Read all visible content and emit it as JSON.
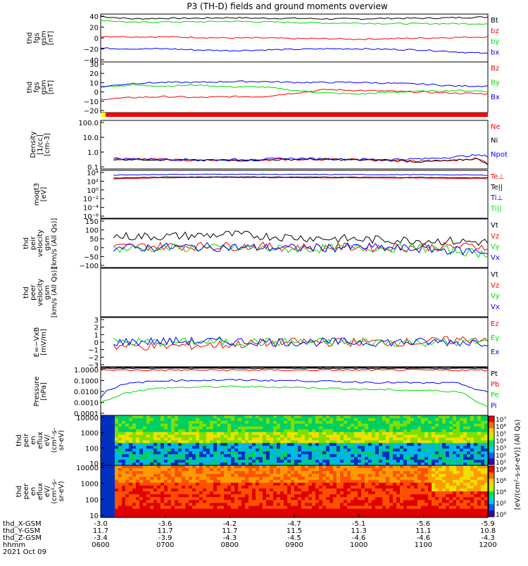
{
  "title": "P3 (TH-D) fields and ground moments overview",
  "date_label": "2021 Oct 09",
  "x_ticks": [
    "0600",
    "0700",
    "0800",
    "0900",
    "1000",
    "1100",
    "1200"
  ],
  "ephemeris": [
    {
      "label": "thd_X-GSM",
      "values": [
        "-3.0",
        "-3.6",
        "-4.2",
        "-4.7",
        "-5.1",
        "-5.6",
        "-5.9"
      ]
    },
    {
      "label": "thd_Y-GSM",
      "values": [
        "11.7",
        "11.7",
        "11.7",
        "11.5",
        "11.3",
        "11.1",
        "10.8"
      ]
    },
    {
      "label": "thd_Z-GSM",
      "values": [
        "-3.4",
        "-3.9",
        "-4.3",
        "-4.5",
        "-4.6",
        "-4.6",
        "-4.3"
      ]
    },
    {
      "label": "hhmm",
      "values": [
        "0600",
        "0700",
        "0800",
        "0900",
        "1000",
        "1100",
        "1200"
      ]
    }
  ],
  "colors": {
    "black": "#000000",
    "red": "#ff0000",
    "green": "#00dd00",
    "blue": "#0000ff",
    "yellow": "#ffff00"
  },
  "chart_data": [
    {
      "type": "line",
      "ylabel": [
        "thd",
        "fgs",
        "gsm",
        "[nT]"
      ],
      "yticks": [
        "40",
        "20",
        "0",
        "−20",
        "−40"
      ],
      "ylim": [
        -40,
        40
      ],
      "legend": [
        {
          "name": "Bt",
          "color": "#000000"
        },
        {
          "name": "bz",
          "color": "#ff0000"
        },
        {
          "name": "by",
          "color": "#00dd00"
        },
        {
          "name": "bx",
          "color": "#0000ff"
        }
      ],
      "x": [
        6,
        6.5,
        7,
        7.5,
        8,
        8.5,
        9,
        9.5,
        10,
        10.5,
        11,
        11.5,
        12
      ],
      "series": [
        {
          "name": "Bt",
          "values": [
            36,
            32,
            33,
            33,
            34,
            33,
            33,
            32,
            32,
            33,
            33,
            34,
            35
          ]
        },
        {
          "name": "bz",
          "values": [
            3,
            2,
            2,
            1,
            0,
            0,
            -1,
            -1,
            -2,
            -1,
            0,
            1,
            2
          ]
        },
        {
          "name": "by",
          "values": [
            30,
            26,
            27,
            27,
            28,
            27,
            26,
            25,
            25,
            24,
            24,
            24,
            24
          ]
        },
        {
          "name": "bx",
          "values": [
            -17,
            -18,
            -18,
            -20,
            -21,
            -20,
            -19,
            -18,
            -18,
            -19,
            -20,
            -23,
            -26
          ]
        }
      ]
    },
    {
      "type": "line",
      "ylabel": [
        "thd",
        "fgs",
        "gsm",
        "[nT]"
      ],
      "yticks": [
        "30",
        "20",
        "10",
        "0",
        "−10",
        "−20"
      ],
      "ylim": [
        -27,
        30
      ],
      "legend": [
        {
          "name": "Bz",
          "color": "#ff0000"
        },
        {
          "name": "By",
          "color": "#00dd00"
        },
        {
          "name": "Bx",
          "color": "#0000ff"
        }
      ],
      "x": [
        6,
        6.5,
        7,
        7.5,
        8,
        8.5,
        9,
        9.5,
        10,
        10.5,
        11,
        11.5,
        12
      ],
      "series": [
        {
          "name": "Bz",
          "values": [
            -12,
            -10,
            -9,
            -10,
            -9,
            -9,
            -5,
            -1,
            -2,
            -3,
            -4,
            -5,
            -6
          ]
        },
        {
          "name": "By",
          "values": [
            2,
            4,
            3,
            4,
            2,
            2,
            -2,
            -5,
            -6,
            -4,
            -3,
            -2,
            -3
          ]
        },
        {
          "name": "Bx",
          "values": [
            2,
            6,
            7,
            7,
            8,
            8,
            7,
            7,
            7,
            6,
            5,
            3,
            3
          ]
        }
      ]
    },
    {
      "type": "line",
      "scale": "log",
      "ylabel": [
        "Density",
        "[1/cc]",
        "[cm-3]"
      ],
      "yticks": [
        "100.0",
        "10.0",
        "1.0",
        "0.1"
      ],
      "ylim": [
        0.06,
        200
      ],
      "legend": [
        {
          "name": "Ne",
          "color": "#ff0000"
        },
        {
          "name": "Ni",
          "color": "#000000"
        },
        {
          "name": "Npot",
          "color": "#0000ff"
        }
      ],
      "x": [
        6.2,
        6.5,
        7,
        7.5,
        8,
        8.5,
        9,
        9.5,
        10,
        10.5,
        11,
        11.5,
        11.8,
        12
      ],
      "series": [
        {
          "name": "Ne",
          "values": [
            0.3,
            0.3,
            0.3,
            0.25,
            0.25,
            0.28,
            0.3,
            0.3,
            0.28,
            0.25,
            0.22,
            0.25,
            0.35,
            0.15
          ]
        },
        {
          "name": "Ni",
          "values": [
            0.3,
            0.3,
            0.28,
            0.25,
            0.25,
            0.27,
            0.3,
            0.3,
            0.27,
            0.24,
            0.2,
            0.24,
            0.33,
            0.14
          ]
        },
        {
          "name": "Npot",
          "values": [
            0.35,
            0.32,
            0.3,
            0.28,
            0.28,
            0.3,
            0.35,
            0.32,
            0.3,
            0.3,
            0.32,
            0.45,
            0.6,
            0.5
          ]
        }
      ]
    },
    {
      "type": "line",
      "scale": "log",
      "ylabel": [
        "moqt3",
        "[eV]"
      ],
      "yticks": [
        "10⁴",
        "10²",
        "10⁰",
        "10⁻²",
        "10⁻⁴",
        "10⁻⁶"
      ],
      "ylim": [
        1e-08,
        100000.0
      ],
      "legend": [
        {
          "name": "Te⊥",
          "color": "#ff0000"
        },
        {
          "name": "Te||",
          "color": "#000000"
        },
        {
          "name": "Ti⊥",
          "color": "#0000ff"
        },
        {
          "name": "Ti||",
          "color": "#00dd00"
        }
      ],
      "x": [
        6.2,
        7,
        8,
        9,
        10,
        11,
        12
      ],
      "series": [
        {
          "name": "Te⊥",
          "values": [
            500,
            1000,
            1200,
            1000,
            900,
            800,
            600
          ]
        },
        {
          "name": "Te||",
          "values": [
            800,
            1500,
            1800,
            1500,
            1300,
            1200,
            900
          ]
        },
        {
          "name": "Ti⊥",
          "values": [
            5000,
            8000,
            9000,
            8000,
            7000,
            6500,
            5000
          ]
        }
      ]
    },
    {
      "type": "line",
      "ylabel": [
        "thd",
        "peir",
        "velocity",
        "gsm",
        "[km/s (All Qs)]"
      ],
      "yticks": [
        "150",
        "100",
        "50",
        "0",
        "−50",
        "−100"
      ],
      "ylim": [
        -100,
        150
      ],
      "legend": [
        {
          "name": "Vt",
          "color": "#000000"
        },
        {
          "name": "Vz",
          "color": "#ff0000"
        },
        {
          "name": "Vy",
          "color": "#00dd00"
        },
        {
          "name": "Vx",
          "color": "#0000ff"
        }
      ],
      "x": [
        6.2,
        7,
        8,
        9,
        10,
        11,
        12
      ],
      "series": [
        {
          "name": "Vt",
          "values": [
            60,
            60,
            70,
            55,
            45,
            40,
            30
          ]
        },
        {
          "name": "Vz",
          "values": [
            5,
            10,
            10,
            5,
            5,
            5,
            10
          ]
        },
        {
          "name": "Vy",
          "values": [
            -5,
            0,
            0,
            -5,
            0,
            0,
            -30
          ]
        },
        {
          "name": "Vx",
          "values": [
            0,
            5,
            5,
            0,
            5,
            -5,
            -20
          ]
        }
      ]
    },
    {
      "type": "line",
      "ylabel": [
        "thd",
        "peer",
        "velocity",
        "gsm",
        "[km/s (All Qs)]"
      ],
      "yticks": [],
      "ylim": [
        -100,
        150
      ],
      "legend": [
        {
          "name": "Vt",
          "color": "#000000"
        },
        {
          "name": "Vz",
          "color": "#ff0000"
        },
        {
          "name": "Vy",
          "color": "#00dd00"
        },
        {
          "name": "Vx",
          "color": "#0000ff"
        }
      ],
      "x": [],
      "series": []
    },
    {
      "type": "line",
      "ylabel": [
        "E=−VxB",
        "[mV/m]"
      ],
      "yticks": [
        "3",
        "2",
        "1",
        "0",
        "−1",
        "−2",
        "−3"
      ],
      "ylim": [
        -3,
        3
      ],
      "legend": [
        {
          "name": "Ez",
          "color": "#ff0000"
        },
        {
          "name": "Ey",
          "color": "#00dd00"
        },
        {
          "name": "Ex",
          "color": "#0000ff"
        }
      ],
      "x": [
        6.2,
        7,
        8,
        9,
        10,
        11,
        12
      ],
      "series": [
        {
          "name": "Ez",
          "values": [
            -0.5,
            -0.5,
            -0.3,
            0,
            0,
            0,
            0.5
          ]
        },
        {
          "name": "Ey",
          "values": [
            0,
            0,
            0,
            0,
            0,
            0,
            0
          ]
        },
        {
          "name": "Ex",
          "values": [
            0,
            0.1,
            0.1,
            0,
            0,
            0,
            0
          ]
        }
      ]
    },
    {
      "type": "line",
      "scale": "log",
      "ylabel": [
        "Pressure",
        "[nPa]"
      ],
      "yticks": [
        "1.0000",
        "0.1000",
        "0.0100",
        "0.0010",
        "0.0001"
      ],
      "ylim": [
        0.0001,
        1
      ],
      "legend": [
        {
          "name": "Pt",
          "color": "#000000"
        },
        {
          "name": "Pb",
          "color": "#ff0000"
        },
        {
          "name": "Pe",
          "color": "#00dd00"
        },
        {
          "name": "Pi",
          "color": "#0000ff"
        }
      ],
      "x": [
        6,
        6.2,
        6.5,
        7,
        8,
        9,
        10,
        11,
        11.5,
        11.8,
        12
      ],
      "series": [
        {
          "name": "Pt",
          "values": [
            0.9,
            0.9,
            0.9,
            0.9,
            0.9,
            0.9,
            0.9,
            0.9,
            0.9,
            0.9,
            0.9
          ]
        },
        {
          "name": "Pb",
          "values": [
            0.6,
            0.6,
            0.6,
            0.6,
            0.6,
            0.6,
            0.6,
            0.6,
            0.6,
            0.6,
            0.6
          ]
        },
        {
          "name": "Pe",
          "values": [
            0.001,
            0.003,
            0.01,
            0.02,
            0.025,
            0.022,
            0.015,
            0.012,
            0.01,
            0.0015,
            0.0005
          ]
        },
        {
          "name": "Pi",
          "values": [
            0.003,
            0.02,
            0.05,
            0.08,
            0.09,
            0.08,
            0.06,
            0.05,
            0.05,
            0.015,
            0.008
          ]
        }
      ]
    },
    {
      "type": "heatmap",
      "ylabel": [
        "thd",
        "peir",
        "en",
        "eflux",
        "eV/",
        "(cm²-s-",
        "sr-eV)"
      ],
      "yticks": [
        "10000",
        "1000",
        "100",
        "10"
      ],
      "ylim": [
        5,
        25000
      ]
    },
    {
      "type": "heatmap",
      "ylabel": [
        "thd",
        "peer",
        "en",
        "eflux",
        "eV/",
        "(cm²-s-",
        "sr-eV)"
      ],
      "yticks": [
        "10000",
        "1000",
        "100",
        "10"
      ],
      "ylim": [
        5,
        25000
      ]
    }
  ],
  "colorbar": {
    "label": "[eV/(cm²-s-sr-eV)] (All Qs)",
    "ticks_top": [
      "10⁷",
      "10⁶",
      "10⁵",
      "10⁴",
      "10³",
      "10²",
      "10¹"
    ],
    "ticks_bottom": [
      "10⁸",
      "10⁶",
      "10⁴",
      "10²",
      "10⁰"
    ]
  }
}
